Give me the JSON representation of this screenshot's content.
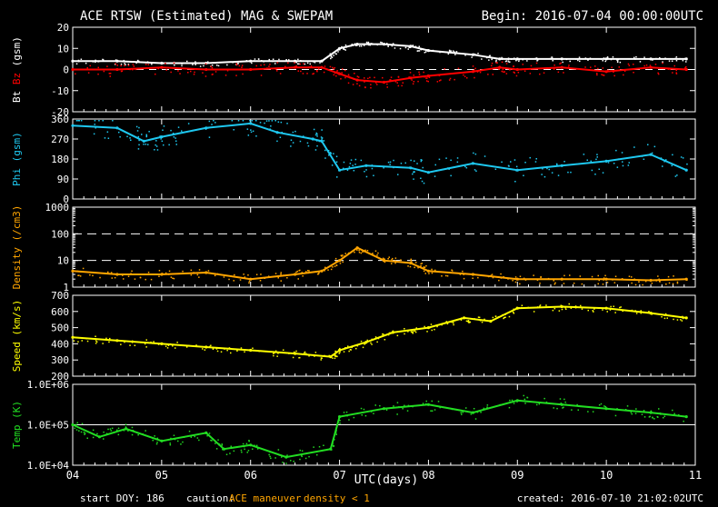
{
  "header": {
    "title": "ACE RTSW (Estimated) MAG & SWEPAM",
    "begin": "Begin: 2016-07-04 00:00:00UTC"
  },
  "footer": {
    "start_doy": "start DOY: 186",
    "caution_label": "caution:",
    "caution_maneuver": "ACE maneuver",
    "caution_density": "density < 1",
    "created": "created: 2016-07-10 21:02:02UTC"
  },
  "colors": {
    "background": "#000000",
    "axes": "#ffffff",
    "bt": "#ffffff",
    "bz": "#ff0000",
    "phi": "#1ec8f0",
    "density": "#ffa500",
    "speed": "#ffff00",
    "temp": "#22dd22",
    "caution": "#ffa500"
  },
  "chart_data": [
    {
      "type": "line",
      "panel": "mag",
      "ylabel_parts": [
        "Bt",
        "Bz",
        "(gsm)"
      ],
      "ylim": [
        -20,
        20
      ],
      "yticks": [
        "20",
        "10",
        "0",
        "-10",
        "-20"
      ],
      "x": [
        4.0,
        4.5,
        5.0,
        5.5,
        6.0,
        6.5,
        6.8,
        7.0,
        7.2,
        7.5,
        7.8,
        8.0,
        8.5,
        8.8,
        9.0,
        9.5,
        10.0,
        10.5,
        10.9
      ],
      "series": [
        {
          "name": "Bt",
          "values": [
            4,
            4,
            3,
            3,
            4,
            4,
            4,
            10,
            12,
            12,
            11,
            9,
            7,
            5,
            5,
            5,
            5,
            5,
            5
          ]
        },
        {
          "name": "Bz",
          "values": [
            0,
            0,
            1,
            0,
            0,
            1,
            1,
            -2,
            -5,
            -6,
            -4,
            -3,
            -1,
            1,
            0,
            1,
            -1,
            1,
            0
          ]
        }
      ]
    },
    {
      "type": "scatter",
      "panel": "phi",
      "ylabel_parts": [
        "Phi",
        "(gsm)"
      ],
      "ylim": [
        0,
        360
      ],
      "yticks": [
        "360",
        "270",
        "180",
        "90",
        "0"
      ],
      "x": [
        4.0,
        4.5,
        4.8,
        5.0,
        5.5,
        6.0,
        6.3,
        6.7,
        6.8,
        7.0,
        7.3,
        7.8,
        8.0,
        8.5,
        9.0,
        9.5,
        10.0,
        10.5,
        10.9
      ],
      "values": [
        330,
        320,
        260,
        280,
        320,
        340,
        300,
        270,
        260,
        130,
        150,
        140,
        120,
        160,
        130,
        150,
        170,
        200,
        130
      ]
    },
    {
      "type": "scatter",
      "panel": "density",
      "ylabel_parts": [
        "Density",
        "(/cm3)"
      ],
      "ylim": [
        1,
        1000
      ],
      "log": true,
      "yticks": [
        "1000",
        "100",
        "10",
        "1"
      ],
      "x": [
        4.0,
        4.5,
        5.0,
        5.5,
        6.0,
        6.5,
        6.8,
        7.0,
        7.2,
        7.5,
        7.8,
        8.0,
        8.5,
        9.0,
        9.5,
        10.0,
        10.5,
        10.9
      ],
      "values": [
        4,
        3,
        3,
        3.5,
        2,
        3,
        4,
        10,
        30,
        10,
        8,
        4,
        3,
        2,
        2,
        2,
        1.8,
        2
      ]
    },
    {
      "type": "scatter",
      "panel": "speed",
      "ylabel_parts": [
        "Speed",
        "(km/s)"
      ],
      "ylim": [
        200,
        700
      ],
      "yticks": [
        "700",
        "600",
        "500",
        "400",
        "300",
        "200"
      ],
      "x": [
        4.0,
        4.5,
        5.0,
        5.5,
        6.0,
        6.5,
        6.9,
        7.0,
        7.3,
        7.6,
        8.0,
        8.4,
        8.7,
        9.0,
        9.5,
        10.0,
        10.5,
        10.9
      ],
      "values": [
        440,
        420,
        400,
        380,
        360,
        340,
        320,
        360,
        410,
        470,
        500,
        560,
        540,
        620,
        630,
        620,
        590,
        560
      ]
    },
    {
      "type": "scatter",
      "panel": "temp",
      "ylabel_parts": [
        "Temp",
        "(K)"
      ],
      "ylim": [
        4,
        6
      ],
      "log": true,
      "yticks": [
        "1.0E+06",
        "1.0E+05",
        "1.0E+04"
      ],
      "x": [
        4.0,
        4.3,
        4.6,
        5.0,
        5.5,
        5.7,
        6.0,
        6.4,
        6.9,
        7.0,
        7.5,
        8.0,
        8.5,
        9.0,
        9.5,
        10.0,
        10.5,
        10.9
      ],
      "values": [
        5.0,
        4.7,
        4.9,
        4.6,
        4.8,
        4.4,
        4.5,
        4.2,
        4.4,
        5.2,
        5.4,
        5.5,
        5.3,
        5.6,
        5.5,
        5.4,
        5.3,
        5.2
      ]
    }
  ],
  "xaxis": {
    "label": "UTC(days)",
    "ticks": [
      "04",
      "05",
      "06",
      "07",
      "08",
      "09",
      "10",
      "11"
    ],
    "range": [
      4,
      11
    ]
  }
}
